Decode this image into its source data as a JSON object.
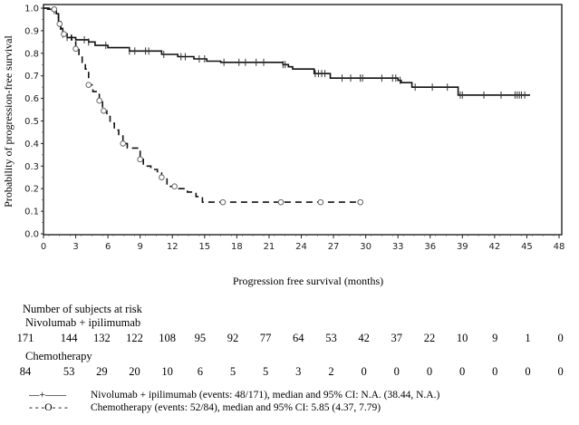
{
  "chart_data": {
    "type": "line",
    "subtype": "kaplan-meier",
    "title": "",
    "xlabel": "Progression free survival (months)",
    "ylabel": "Probability of progression-free survival",
    "xlim": [
      0,
      48
    ],
    "ylim": [
      0.0,
      1.0
    ],
    "x_ticks": [
      0,
      3,
      6,
      9,
      12,
      15,
      18,
      21,
      24,
      27,
      30,
      33,
      36,
      39,
      42,
      45,
      48
    ],
    "y_ticks": [
      0.0,
      0.1,
      0.2,
      0.3,
      0.4,
      0.5,
      0.6,
      0.7,
      0.8,
      0.9,
      1.0
    ],
    "x_tick_labels": [
      "0",
      "3",
      "6",
      "9",
      "12",
      "15",
      "18",
      "21",
      "24",
      "27",
      "30",
      "33",
      "36",
      "39",
      "42",
      "45",
      "48"
    ],
    "y_tick_labels": [
      "0.0",
      "0.1",
      "0.2",
      "0.3",
      "0.4",
      "0.5",
      "0.6",
      "0.7",
      "0.8",
      "0.9",
      "1.0"
    ],
    "grid": false,
    "series": [
      {
        "name": "Nivolumab + ipilimumab",
        "style": "solid",
        "censor_marker": "+",
        "steps": [
          [
            0,
            1.0
          ],
          [
            0.4,
            0.995
          ],
          [
            0.8,
            0.99
          ],
          [
            1.2,
            0.975
          ],
          [
            1.4,
            0.94
          ],
          [
            1.6,
            0.91
          ],
          [
            1.8,
            0.885
          ],
          [
            2.2,
            0.87
          ],
          [
            3.0,
            0.86
          ],
          [
            4.2,
            0.85
          ],
          [
            4.8,
            0.835
          ],
          [
            6.0,
            0.825
          ],
          [
            8.0,
            0.81
          ],
          [
            11.0,
            0.795
          ],
          [
            12.5,
            0.785
          ],
          [
            14.0,
            0.775
          ],
          [
            15.2,
            0.765
          ],
          [
            16.5,
            0.76
          ],
          [
            22.3,
            0.75
          ],
          [
            22.8,
            0.74
          ],
          [
            23.2,
            0.73
          ],
          [
            25.2,
            0.71
          ],
          [
            26.7,
            0.69
          ],
          [
            33.0,
            0.68
          ],
          [
            33.3,
            0.67
          ],
          [
            34.3,
            0.65
          ],
          [
            38.6,
            0.615
          ],
          [
            45.3,
            0.615
          ]
        ],
        "censor_times": [
          1.0,
          1.8,
          2.2,
          3.8,
          4.2,
          5.8,
          8.0,
          8.5,
          9.5,
          9.8,
          11.2,
          12.8,
          13.2,
          14.5,
          15.0,
          16.8,
          18.2,
          18.8,
          19.8,
          20.5,
          22.3,
          22.5,
          25.3,
          25.6,
          25.9,
          26.2,
          27.8,
          28.6,
          29.5,
          29.7,
          31.5,
          32.5,
          32.8,
          33.2,
          34.6,
          36.2,
          37.6,
          38.8,
          39.0,
          41.0,
          42.6,
          43.9,
          44.1,
          44.3,
          44.5,
          44.8
        ],
        "events": 48,
        "n": 171,
        "median": "N.A.",
        "ci95": "38.44, N.A."
      },
      {
        "name": "Chemotherapy",
        "style": "dashed",
        "censor_marker": "o",
        "steps": [
          [
            0,
            1.0
          ],
          [
            0.6,
            0.995
          ],
          [
            1.2,
            0.97
          ],
          [
            1.4,
            0.93
          ],
          [
            1.6,
            0.9
          ],
          [
            1.9,
            0.885
          ],
          [
            2.6,
            0.86
          ],
          [
            3.0,
            0.82
          ],
          [
            3.3,
            0.79
          ],
          [
            3.6,
            0.76
          ],
          [
            3.9,
            0.73
          ],
          [
            4.2,
            0.66
          ],
          [
            4.6,
            0.63
          ],
          [
            5.2,
            0.59
          ],
          [
            5.5,
            0.545
          ],
          [
            5.9,
            0.52
          ],
          [
            6.2,
            0.49
          ],
          [
            6.6,
            0.46
          ],
          [
            7.0,
            0.44
          ],
          [
            7.4,
            0.4
          ],
          [
            7.8,
            0.38
          ],
          [
            9.0,
            0.33
          ],
          [
            9.3,
            0.3
          ],
          [
            10.0,
            0.285
          ],
          [
            10.6,
            0.27
          ],
          [
            11.0,
            0.25
          ],
          [
            11.5,
            0.21
          ],
          [
            12.6,
            0.2
          ],
          [
            13.4,
            0.185
          ],
          [
            14.2,
            0.165
          ],
          [
            14.8,
            0.14
          ],
          [
            29.5,
            0.14
          ]
        ],
        "censor_times": [
          1.0,
          1.5,
          1.9,
          3.0,
          4.2,
          5.2,
          5.6,
          7.4,
          9.0,
          11.0,
          12.2,
          16.7,
          22.1,
          25.8,
          29.5
        ],
        "events": 52,
        "n": 84,
        "median": "5.85",
        "ci95": "4.37, 7.79"
      }
    ],
    "legend_placement": "bottom"
  },
  "risk_table": {
    "title": "Number of subjects at risk",
    "groups": [
      {
        "name": "Nivolumab + ipilimumab",
        "values": [
          "171",
          "144",
          "132",
          "122",
          "108",
          "95",
          "92",
          "77",
          "64",
          "53",
          "42",
          "37",
          "22",
          "10",
          "9",
          "1",
          "0"
        ]
      },
      {
        "name": "Chemotherapy",
        "values": [
          "84",
          "53",
          "29",
          "20",
          "10",
          "6",
          "5",
          "5",
          "3",
          "2",
          "0",
          "0",
          "0",
          "0",
          "0",
          "0",
          "0"
        ]
      }
    ]
  },
  "legend": {
    "items": [
      {
        "symbol": "—+——",
        "label": "Nivolumab + ipilimumab (events: 48/171), median and 95% CI: N.A. (38.44, N.A.)"
      },
      {
        "symbol": "- - -O- - -",
        "label": "Chemotherapy (events: 52/84), median and 95% CI: 5.85 (4.37, 7.79)"
      }
    ]
  }
}
